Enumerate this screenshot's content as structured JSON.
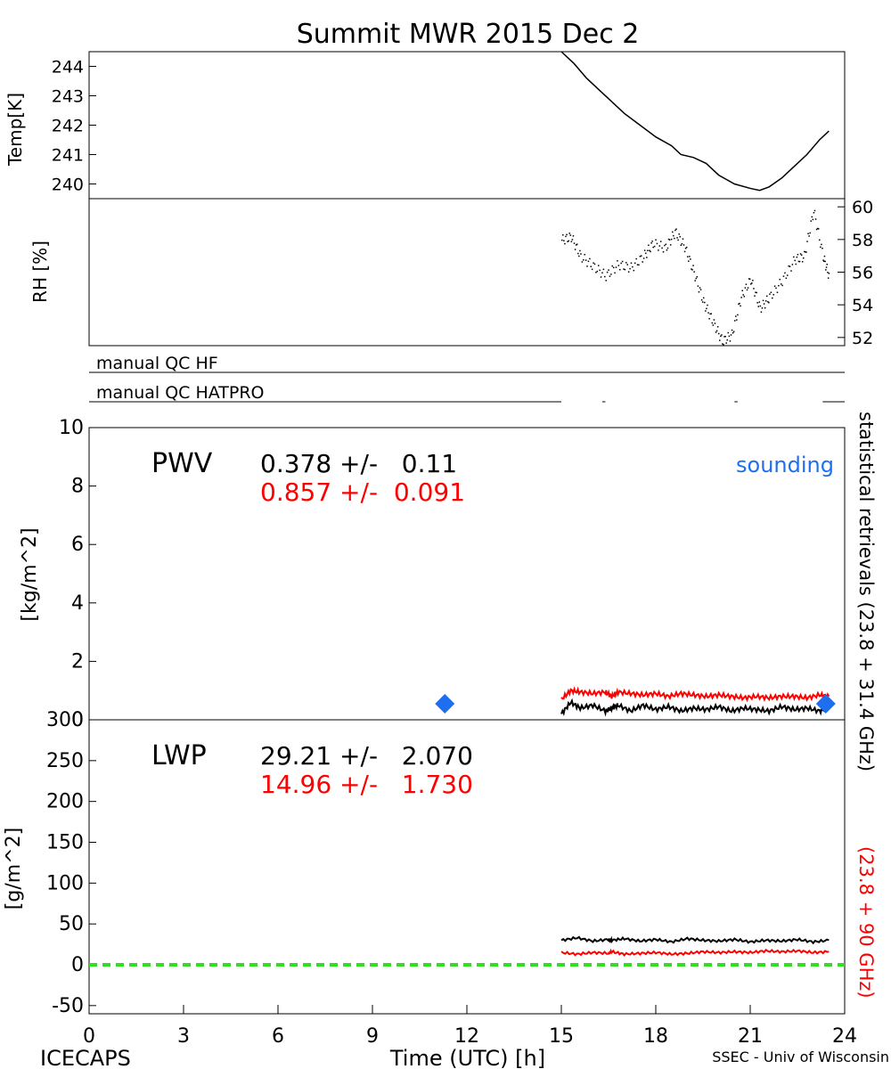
{
  "title": "Summit MWR 2015 Dec  2",
  "footer": {
    "left": "ICECAPS",
    "center": "Time (UTC) [h]",
    "right": "SSEC - Univ of Wisconsin"
  },
  "colors": {
    "statistical": "#000000",
    "red_retrieval": "#ff0000",
    "sounding": "#1e6ff0",
    "zero_line": "#33dd22"
  },
  "right_labels": {
    "statistical": "statistical retrievals (23.8 + 31.4 GHz)",
    "red": "(23.8 + 90 GHz)"
  },
  "chart_data": [
    {
      "id": "temp",
      "type": "line",
      "ylabel": "Temp[K]",
      "ylim": [
        239.5,
        244.5
      ],
      "yticks": [
        240,
        241,
        242,
        243,
        244
      ],
      "xlim": [
        0,
        24
      ],
      "series": [
        {
          "x": [
            15.0,
            15.4,
            15.8,
            16.2,
            16.6,
            17.0,
            17.5,
            18.0,
            18.5,
            18.8,
            19.2,
            19.6,
            20.0,
            20.5,
            21.0,
            21.3,
            21.6,
            22.0,
            22.4,
            22.8,
            23.2,
            23.5
          ],
          "y": [
            244.5,
            244.1,
            243.6,
            243.2,
            242.8,
            242.4,
            242.0,
            241.6,
            241.3,
            241.0,
            240.9,
            240.7,
            240.3,
            240.0,
            239.85,
            239.78,
            239.9,
            240.2,
            240.6,
            241.0,
            241.5,
            241.8
          ]
        }
      ]
    },
    {
      "id": "rh",
      "type": "scatter",
      "ylabel": "RH [%]",
      "ylim": [
        51.5,
        60.5
      ],
      "yticks": [
        52,
        54,
        56,
        58,
        60
      ],
      "xlim": [
        0,
        24
      ],
      "series": [
        {
          "x": [
            15.0,
            15.3,
            15.6,
            16.0,
            16.4,
            16.8,
            17.2,
            17.6,
            17.9,
            18.3,
            18.6,
            18.9,
            19.2,
            19.5,
            19.8,
            20.1,
            20.4,
            20.7,
            21.0,
            21.3,
            21.6,
            22.0,
            22.4,
            22.7,
            23.0,
            23.3,
            23.5
          ],
          "y": [
            58.0,
            58.2,
            57.0,
            56.4,
            55.8,
            56.5,
            56.3,
            57.0,
            57.8,
            57.5,
            58.5,
            57.6,
            56.0,
            54.2,
            53.0,
            51.8,
            52.2,
            54.5,
            55.6,
            53.8,
            54.5,
            55.5,
            56.8,
            57.0,
            59.8,
            57.0,
            55.7
          ]
        }
      ]
    },
    {
      "id": "qc",
      "type": "table",
      "rows": [
        {
          "label": "manual QC HF",
          "segments": [
            [
              0,
              24
            ]
          ]
        },
        {
          "label": "manual QC HATPRO",
          "segments": [
            [
              0,
              15
            ],
            [
              16.3,
              16.4
            ],
            [
              20.5,
              20.6
            ],
            [
              23.3,
              24
            ]
          ]
        }
      ]
    },
    {
      "id": "pwv",
      "type": "line",
      "ylabel": "[kg/m^2]",
      "panel_label": "PWV",
      "ylim": [
        0,
        10
      ],
      "yticks": [
        0,
        2,
        4,
        6,
        8,
        10
      ],
      "xlim": [
        0,
        24
      ],
      "stat_black": "0.378 +/-   0.11",
      "stat_red": "0.857 +/-  0.091",
      "legend": "sounding",
      "series": [
        {
          "color": "#000000",
          "x": [
            15.0,
            15.3,
            15.6,
            16.0,
            16.4,
            16.6,
            16.8,
            17.2,
            17.6,
            18.0,
            18.4,
            18.8,
            19.2,
            19.6,
            20.0,
            20.4,
            20.8,
            21.2,
            21.6,
            22.0,
            22.4,
            22.8,
            23.2,
            23.5
          ],
          "y": [
            0.2,
            0.6,
            0.4,
            0.5,
            0.3,
            0.4,
            0.5,
            0.3,
            0.5,
            0.35,
            0.45,
            0.3,
            0.4,
            0.35,
            0.45,
            0.3,
            0.4,
            0.35,
            0.3,
            0.45,
            0.35,
            0.4,
            0.3,
            0.4
          ]
        },
        {
          "color": "#ff0000",
          "x": [
            15.0,
            15.3,
            15.6,
            16.0,
            16.4,
            16.6,
            16.8,
            17.2,
            17.6,
            18.0,
            18.4,
            18.8,
            19.2,
            19.6,
            20.0,
            20.4,
            20.8,
            21.2,
            21.6,
            22.0,
            22.4,
            22.8,
            23.2,
            23.5
          ],
          "y": [
            0.7,
            1.0,
            0.95,
            0.9,
            0.95,
            0.8,
            0.95,
            0.9,
            0.85,
            0.9,
            0.8,
            0.9,
            0.85,
            0.8,
            0.85,
            0.8,
            0.75,
            0.8,
            0.75,
            0.8,
            0.8,
            0.75,
            0.85,
            0.8
          ]
        }
      ],
      "points": [
        {
          "x": 11.3,
          "y": 0.55
        },
        {
          "x": 23.4,
          "y": 0.55
        }
      ]
    },
    {
      "id": "lwp",
      "type": "line",
      "ylabel": "[g/m^2]",
      "panel_label": "LWP",
      "ylim": [
        -60,
        300
      ],
      "yticks": [
        -50,
        0,
        50,
        100,
        150,
        200,
        250,
        300
      ],
      "xlim": [
        0,
        24
      ],
      "xticks": [
        0,
        3,
        6,
        9,
        12,
        15,
        18,
        21,
        24
      ],
      "stat_black": "29.21 +/-   2.070",
      "stat_red": "14.96 +/-   1.730",
      "series": [
        {
          "color": "#000000",
          "x": [
            15.0,
            15.5,
            16.0,
            16.5,
            16.6,
            17.0,
            17.5,
            18.0,
            18.5,
            19.0,
            19.5,
            20.0,
            20.5,
            21.0,
            21.5,
            22.0,
            22.5,
            23.0,
            23.5
          ],
          "y": [
            30,
            33,
            29,
            31,
            30,
            32,
            29,
            31,
            28,
            32,
            30,
            29,
            31,
            28,
            30,
            29,
            31,
            28,
            30
          ]
        },
        {
          "color": "#ff0000",
          "x": [
            15.0,
            15.5,
            16.0,
            16.5,
            16.6,
            17.0,
            17.5,
            18.0,
            18.5,
            19.0,
            19.5,
            20.0,
            20.5,
            21.0,
            21.5,
            22.0,
            22.5,
            23.0,
            23.5
          ],
          "y": [
            15,
            13,
            15,
            14,
            16,
            13,
            14,
            15,
            13,
            14,
            16,
            15,
            16,
            15,
            17,
            16,
            17,
            15,
            16
          ]
        }
      ],
      "zero_line": 0
    }
  ]
}
